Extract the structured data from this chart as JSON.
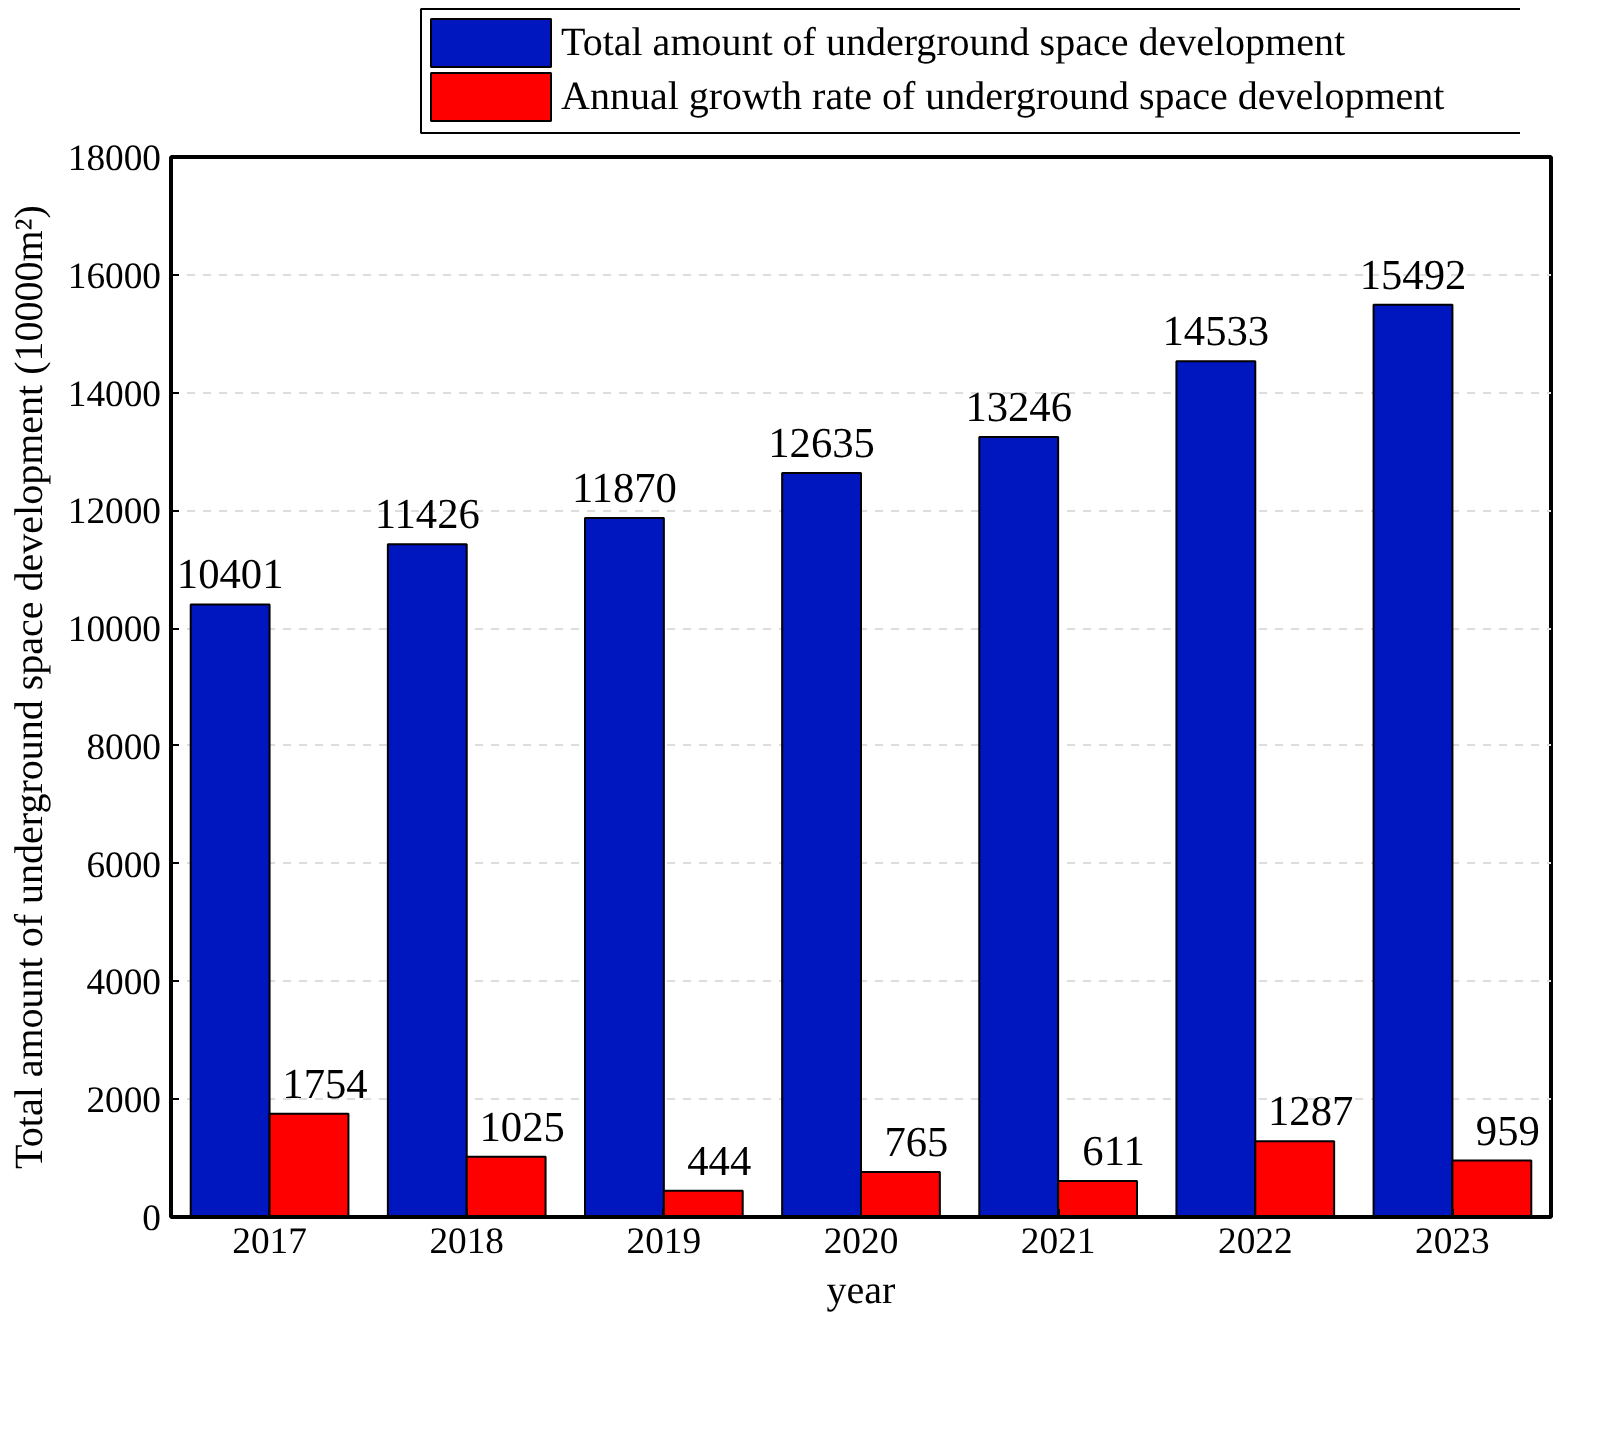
{
  "chart_data": {
    "type": "bar",
    "xlabel": "year",
    "ylabel": "Total amount of underground space development (10000m²)",
    "categories": [
      "2017",
      "2018",
      "2019",
      "2020",
      "2021",
      "2022",
      "2023"
    ],
    "series": [
      {
        "name": "Total amount of underground space development",
        "color": "#0016bf",
        "values": [
          10401,
          11426,
          11870,
          12635,
          13246,
          14533,
          15492
        ]
      },
      {
        "name": "Annual growth rate of underground space development",
        "color": "#ff0000",
        "values": [
          1754,
          1025,
          444,
          765,
          611,
          1287,
          959
        ]
      }
    ],
    "ylim": [
      0,
      18000
    ],
    "yticks": [
      0,
      2000,
      4000,
      6000,
      8000,
      10000,
      12000,
      14000,
      16000,
      18000
    ],
    "data_labels": true,
    "grid": "y",
    "legend": "top"
  }
}
